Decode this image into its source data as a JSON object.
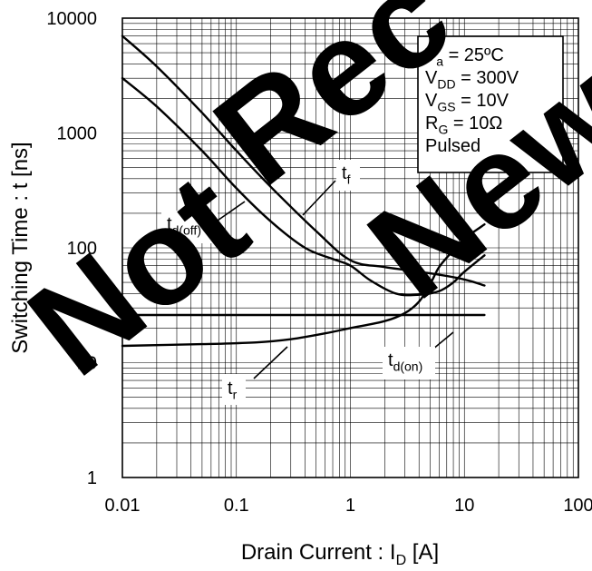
{
  "chart_data": {
    "type": "line",
    "x_scale": "log",
    "y_scale": "log",
    "xlim": [
      0.01,
      100
    ],
    "ylim": [
      1,
      10000
    ],
    "grid": true,
    "xlabel": {
      "main": "Drain Current : I",
      "sub": "D",
      "unit": " [A]"
    },
    "ylabel": "Switching Time : t [ns]",
    "x_ticks": [
      {
        "value": 0.01,
        "label": "0.01"
      },
      {
        "value": 0.1,
        "label": "0.1"
      },
      {
        "value": 1,
        "label": "1"
      },
      {
        "value": 10,
        "label": "10"
      },
      {
        "value": 100,
        "label": "100"
      }
    ],
    "y_ticks": [
      {
        "value": 1,
        "label": "1"
      },
      {
        "value": 10,
        "label": "10"
      },
      {
        "value": 100,
        "label": "100"
      },
      {
        "value": 1000,
        "label": "1000"
      },
      {
        "value": 10000,
        "label": "10000"
      }
    ],
    "conditions": [
      {
        "main": "T",
        "sub": "a",
        "rest": " = 25ºC"
      },
      {
        "main": "V",
        "sub": "DD",
        "rest": " = 300V"
      },
      {
        "main": "V",
        "sub": "GS",
        "rest": " = 10V"
      },
      {
        "main": "R",
        "sub": "G",
        "rest": " = 10Ω"
      },
      {
        "main": "Pulsed",
        "sub": "",
        "rest": ""
      }
    ],
    "series": [
      {
        "name": "t_f",
        "points": [
          [
            0.01,
            7000
          ],
          [
            0.02,
            3800
          ],
          [
            0.05,
            1500
          ],
          [
            0.1,
            700
          ],
          [
            0.2,
            340
          ],
          [
            0.5,
            140
          ],
          [
            1,
            78
          ],
          [
            2,
            68
          ],
          [
            5,
            60
          ],
          [
            10,
            53
          ],
          [
            15,
            47
          ]
        ]
      },
      {
        "name": "t_d(off)",
        "points": [
          [
            0.01,
            3000
          ],
          [
            0.02,
            1700
          ],
          [
            0.05,
            700
          ],
          [
            0.1,
            330
          ],
          [
            0.2,
            170
          ],
          [
            0.4,
            100
          ],
          [
            0.7,
            80
          ],
          [
            1,
            70
          ],
          [
            1.5,
            52
          ],
          [
            2.5,
            40
          ],
          [
            4,
            39
          ],
          [
            6,
            42
          ],
          [
            8,
            50
          ],
          [
            10,
            62
          ],
          [
            15,
            86
          ]
        ]
      },
      {
        "name": "t_r",
        "points": [
          [
            0.01,
            14
          ],
          [
            0.05,
            14.5
          ],
          [
            0.15,
            15
          ],
          [
            0.3,
            16
          ],
          [
            0.6,
            18
          ],
          [
            1,
            20
          ],
          [
            2,
            23
          ],
          [
            3,
            27
          ],
          [
            4,
            34
          ],
          [
            5,
            48
          ],
          [
            6,
            68
          ],
          [
            8,
            95
          ],
          [
            10,
            120
          ],
          [
            15,
            160
          ]
        ]
      },
      {
        "name": "t_d(on)",
        "points": [
          [
            0.01,
            26
          ],
          [
            15,
            26
          ]
        ]
      }
    ],
    "annotations": [
      {
        "main": "t",
        "sub": "f"
      },
      {
        "main": "t",
        "sub": "d(off)"
      },
      {
        "main": "t",
        "sub": "r"
      },
      {
        "main": "t",
        "sub": "d(on)"
      }
    ],
    "watermark": {
      "word1": "Not",
      "word2": "Rec",
      "word3": "New"
    }
  }
}
